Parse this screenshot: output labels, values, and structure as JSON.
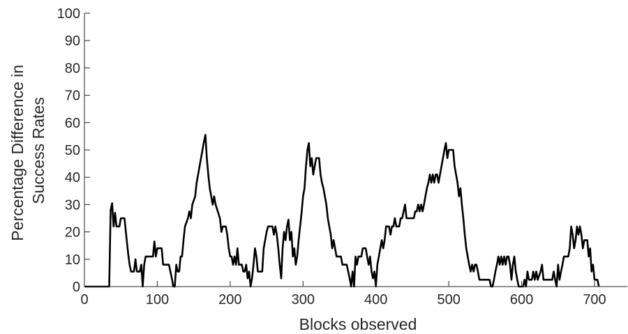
{
  "chart_data": {
    "type": "line",
    "title": "",
    "xlabel": "Blocks observed",
    "ylabel_lines": [
      "Percentage Difference in",
      "Success Rates"
    ],
    "xlim": [
      0,
      745
    ],
    "ylim": [
      0,
      100
    ],
    "x_ticks": [
      0,
      100,
      200,
      300,
      400,
      500,
      600,
      700
    ],
    "y_ticks": [
      0,
      10,
      20,
      30,
      40,
      50,
      60,
      70,
      80,
      90,
      100
    ],
    "line_color": "#000000",
    "grid": false,
    "series": [
      {
        "points": [
          [
            0,
            0
          ],
          [
            34,
            0
          ],
          [
            36,
            28
          ],
          [
            38,
            30.5
          ],
          [
            40,
            22
          ],
          [
            42,
            27
          ],
          [
            44,
            22
          ],
          [
            48,
            22
          ],
          [
            50,
            25
          ],
          [
            55,
            25
          ],
          [
            58,
            17
          ],
          [
            60,
            12
          ],
          [
            62,
            8
          ],
          [
            64,
            5.5
          ],
          [
            68,
            5.5
          ],
          [
            70,
            10
          ],
          [
            72,
            5.5
          ],
          [
            76,
            5.5
          ],
          [
            78,
            8
          ],
          [
            80,
            0
          ],
          [
            82,
            8
          ],
          [
            84,
            11
          ],
          [
            94,
            11
          ],
          [
            96,
            16.5
          ],
          [
            98,
            11
          ],
          [
            100,
            14
          ],
          [
            106,
            14
          ],
          [
            108,
            8
          ],
          [
            114,
            8
          ],
          [
            116,
            8
          ],
          [
            120,
            3
          ],
          [
            122,
            0
          ],
          [
            124,
            0
          ],
          [
            126,
            8
          ],
          [
            128,
            5.5
          ],
          [
            130,
            5.5
          ],
          [
            132,
            11
          ],
          [
            134,
            11
          ],
          [
            136,
            17
          ],
          [
            138,
            22
          ],
          [
            142,
            25
          ],
          [
            144,
            27.5
          ],
          [
            146,
            25
          ],
          [
            148,
            30
          ],
          [
            152,
            33
          ],
          [
            154,
            38
          ],
          [
            156,
            41
          ],
          [
            158,
            44
          ],
          [
            160,
            47
          ],
          [
            162,
            50
          ],
          [
            164,
            53
          ],
          [
            166,
            55.5
          ],
          [
            168,
            47
          ],
          [
            170,
            41
          ],
          [
            172,
            36
          ],
          [
            174,
            33
          ],
          [
            176,
            30
          ],
          [
            178,
            33
          ],
          [
            180,
            30
          ],
          [
            186,
            25
          ],
          [
            188,
            20
          ],
          [
            190,
            22
          ],
          [
            194,
            22
          ],
          [
            196,
            19
          ],
          [
            198,
            14
          ],
          [
            200,
            11
          ],
          [
            202,
            11
          ],
          [
            204,
            8
          ],
          [
            206,
            11
          ],
          [
            208,
            8
          ],
          [
            210,
            14
          ],
          [
            212,
            8
          ],
          [
            216,
            8
          ],
          [
            218,
            5.5
          ],
          [
            220,
            5.5
          ],
          [
            222,
            8
          ],
          [
            224,
            3
          ],
          [
            226,
            5.5
          ],
          [
            228,
            0
          ],
          [
            230,
            3
          ],
          [
            232,
            8
          ],
          [
            234,
            14
          ],
          [
            236,
            11
          ],
          [
            238,
            5.5
          ],
          [
            244,
            5.5
          ],
          [
            246,
            14
          ],
          [
            248,
            17
          ],
          [
            250,
            20
          ],
          [
            252,
            22
          ],
          [
            258,
            22
          ],
          [
            260,
            19
          ],
          [
            262,
            22
          ],
          [
            264,
            19
          ],
          [
            266,
            14
          ],
          [
            268,
            8
          ],
          [
            270,
            3
          ],
          [
            272,
            14
          ],
          [
            274,
            20
          ],
          [
            276,
            17
          ],
          [
            278,
            22
          ],
          [
            280,
            24.5
          ],
          [
            282,
            17
          ],
          [
            284,
            20
          ],
          [
            286,
            11
          ],
          [
            288,
            14
          ],
          [
            290,
            8
          ],
          [
            292,
            11
          ],
          [
            294,
            17
          ],
          [
            296,
            22
          ],
          [
            298,
            27
          ],
          [
            300,
            33
          ],
          [
            302,
            36
          ],
          [
            304,
            44
          ],
          [
            306,
            50
          ],
          [
            308,
            52.5
          ],
          [
            310,
            44
          ],
          [
            312,
            47
          ],
          [
            314,
            41
          ],
          [
            316,
            44
          ],
          [
            318,
            47
          ],
          [
            322,
            47
          ],
          [
            324,
            41
          ],
          [
            326,
            38
          ],
          [
            328,
            36
          ],
          [
            330,
            33
          ],
          [
            332,
            30
          ],
          [
            334,
            25
          ],
          [
            336,
            22
          ],
          [
            338,
            19
          ],
          [
            340,
            14
          ],
          [
            342,
            17
          ],
          [
            344,
            14
          ],
          [
            346,
            11
          ],
          [
            352,
            11
          ],
          [
            354,
            8
          ],
          [
            360,
            8
          ],
          [
            362,
            5.5
          ],
          [
            364,
            3
          ],
          [
            366,
            0
          ],
          [
            368,
            5.5
          ],
          [
            370,
            0
          ],
          [
            372,
            11
          ],
          [
            374,
            8
          ],
          [
            376,
            11
          ],
          [
            380,
            11
          ],
          [
            382,
            14
          ],
          [
            386,
            14
          ],
          [
            388,
            11
          ],
          [
            390,
            8
          ],
          [
            392,
            11
          ],
          [
            394,
            5.5
          ],
          [
            396,
            3
          ],
          [
            398,
            5.5
          ],
          [
            400,
            0
          ],
          [
            402,
            8
          ],
          [
            404,
            11
          ],
          [
            406,
            14
          ],
          [
            408,
            17
          ],
          [
            410,
            14
          ],
          [
            412,
            17
          ],
          [
            414,
            22
          ],
          [
            418,
            22
          ],
          [
            420,
            19
          ],
          [
            422,
            22
          ],
          [
            424,
            22
          ],
          [
            426,
            25
          ],
          [
            428,
            22
          ],
          [
            432,
            22
          ],
          [
            434,
            25
          ],
          [
            436,
            25
          ],
          [
            438,
            27.5
          ],
          [
            440,
            30
          ],
          [
            442,
            25
          ],
          [
            448,
            25
          ],
          [
            452,
            25
          ],
          [
            454,
            27.5
          ],
          [
            456,
            27.5
          ],
          [
            458,
            30
          ],
          [
            460,
            27.5
          ],
          [
            462,
            30
          ],
          [
            464,
            27.5
          ],
          [
            466,
            30
          ],
          [
            468,
            33
          ],
          [
            470,
            36
          ],
          [
            472,
            38
          ],
          [
            474,
            41
          ],
          [
            476,
            38
          ],
          [
            478,
            41
          ],
          [
            480,
            38
          ],
          [
            482,
            41
          ],
          [
            484,
            41
          ],
          [
            486,
            38
          ],
          [
            488,
            41
          ],
          [
            490,
            44
          ],
          [
            492,
            47
          ],
          [
            494,
            50
          ],
          [
            496,
            52.5
          ],
          [
            498,
            47
          ],
          [
            500,
            50
          ],
          [
            506,
            50
          ],
          [
            508,
            44
          ],
          [
            510,
            41
          ],
          [
            512,
            38
          ],
          [
            514,
            33
          ],
          [
            516,
            36
          ],
          [
            518,
            30
          ],
          [
            520,
            25
          ],
          [
            522,
            19
          ],
          [
            524,
            14
          ],
          [
            526,
            11
          ],
          [
            528,
            8
          ],
          [
            530,
            5.5
          ],
          [
            532,
            8
          ],
          [
            534,
            5.5
          ],
          [
            536,
            8
          ],
          [
            538,
            8
          ],
          [
            540,
            5.5
          ],
          [
            542,
            2.5
          ],
          [
            556,
            2.5
          ],
          [
            558,
            0
          ],
          [
            560,
            0
          ],
          [
            562,
            2.5
          ],
          [
            564,
            5.5
          ],
          [
            566,
            8
          ],
          [
            568,
            11
          ],
          [
            570,
            8
          ],
          [
            572,
            11
          ],
          [
            574,
            8
          ],
          [
            576,
            11
          ],
          [
            578,
            8
          ],
          [
            580,
            11
          ],
          [
            582,
            11
          ],
          [
            584,
            8
          ],
          [
            586,
            2.5
          ],
          [
            588,
            8
          ],
          [
            590,
            11
          ],
          [
            592,
            5.5
          ],
          [
            594,
            2.5
          ],
          [
            596,
            0
          ],
          [
            602,
            0
          ],
          [
            604,
            2.5
          ],
          [
            606,
            0
          ],
          [
            608,
            5.5
          ],
          [
            610,
            2.5
          ],
          [
            614,
            2.5
          ],
          [
            616,
            5.5
          ],
          [
            618,
            2.5
          ],
          [
            620,
            5.5
          ],
          [
            622,
            2.5
          ],
          [
            626,
            5.5
          ],
          [
            628,
            8
          ],
          [
            630,
            2.5
          ],
          [
            642,
            2.5
          ],
          [
            644,
            5.5
          ],
          [
            646,
            2.5
          ],
          [
            648,
            0
          ],
          [
            650,
            8
          ],
          [
            652,
            2.5
          ],
          [
            654,
            5.5
          ],
          [
            656,
            8
          ],
          [
            658,
            11
          ],
          [
            664,
            11
          ],
          [
            666,
            14
          ],
          [
            668,
            22
          ],
          [
            670,
            19
          ],
          [
            672,
            14
          ],
          [
            674,
            17
          ],
          [
            676,
            22
          ],
          [
            678,
            19
          ],
          [
            680,
            22
          ],
          [
            682,
            19
          ],
          [
            684,
            14
          ],
          [
            686,
            17
          ],
          [
            690,
            17
          ],
          [
            692,
            11
          ],
          [
            694,
            14
          ],
          [
            696,
            5.5
          ],
          [
            698,
            8
          ],
          [
            700,
            2.5
          ],
          [
            704,
            2.5
          ],
          [
            706,
            0
          ]
        ]
      }
    ]
  }
}
